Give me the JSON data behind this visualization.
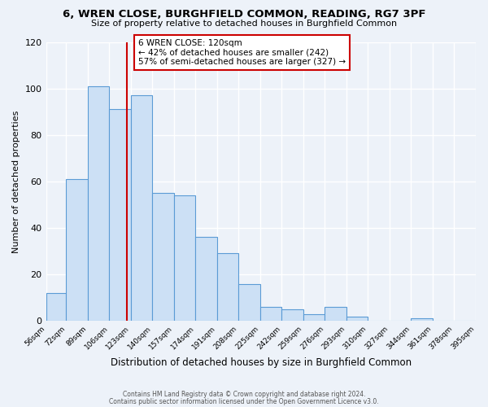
{
  "title": "6, WREN CLOSE, BURGHFIELD COMMON, READING, RG7 3PF",
  "subtitle": "Size of property relative to detached houses in Burghfield Common",
  "xlabel": "Distribution of detached houses by size in Burghfield Common",
  "ylabel": "Number of detached properties",
  "bar_edges": [
    56,
    72,
    89,
    106,
    123,
    140,
    157,
    174,
    191,
    208,
    225,
    242,
    259,
    276,
    293,
    310,
    327,
    344,
    361,
    378,
    395
  ],
  "bar_heights": [
    12,
    61,
    101,
    91,
    97,
    55,
    54,
    36,
    29,
    16,
    6,
    5,
    3,
    6,
    2,
    0,
    0,
    1,
    0,
    0
  ],
  "bar_color": "#cce0f5",
  "bar_edge_color": "#5b9bd5",
  "reference_line_x": 120,
  "reference_line_color": "#cc0000",
  "annotation_text_line1": "6 WREN CLOSE: 120sqm",
  "annotation_text_line2": "← 42% of detached houses are smaller (242)",
  "annotation_text_line3": "57% of semi-detached houses are larger (327) →",
  "annotation_box_edge_color": "#cc0000",
  "ylim": [
    0,
    120
  ],
  "yticks": [
    0,
    20,
    40,
    60,
    80,
    100,
    120
  ],
  "footer_line1": "Contains HM Land Registry data © Crown copyright and database right 2024.",
  "footer_line2": "Contains public sector information licensed under the Open Government Licence v3.0.",
  "bg_color": "#edf2f9",
  "plot_bg_color": "#edf2f9",
  "title_fontsize": 9.5,
  "subtitle_fontsize": 8,
  "ylabel_fontsize": 8,
  "xlabel_fontsize": 8.5
}
